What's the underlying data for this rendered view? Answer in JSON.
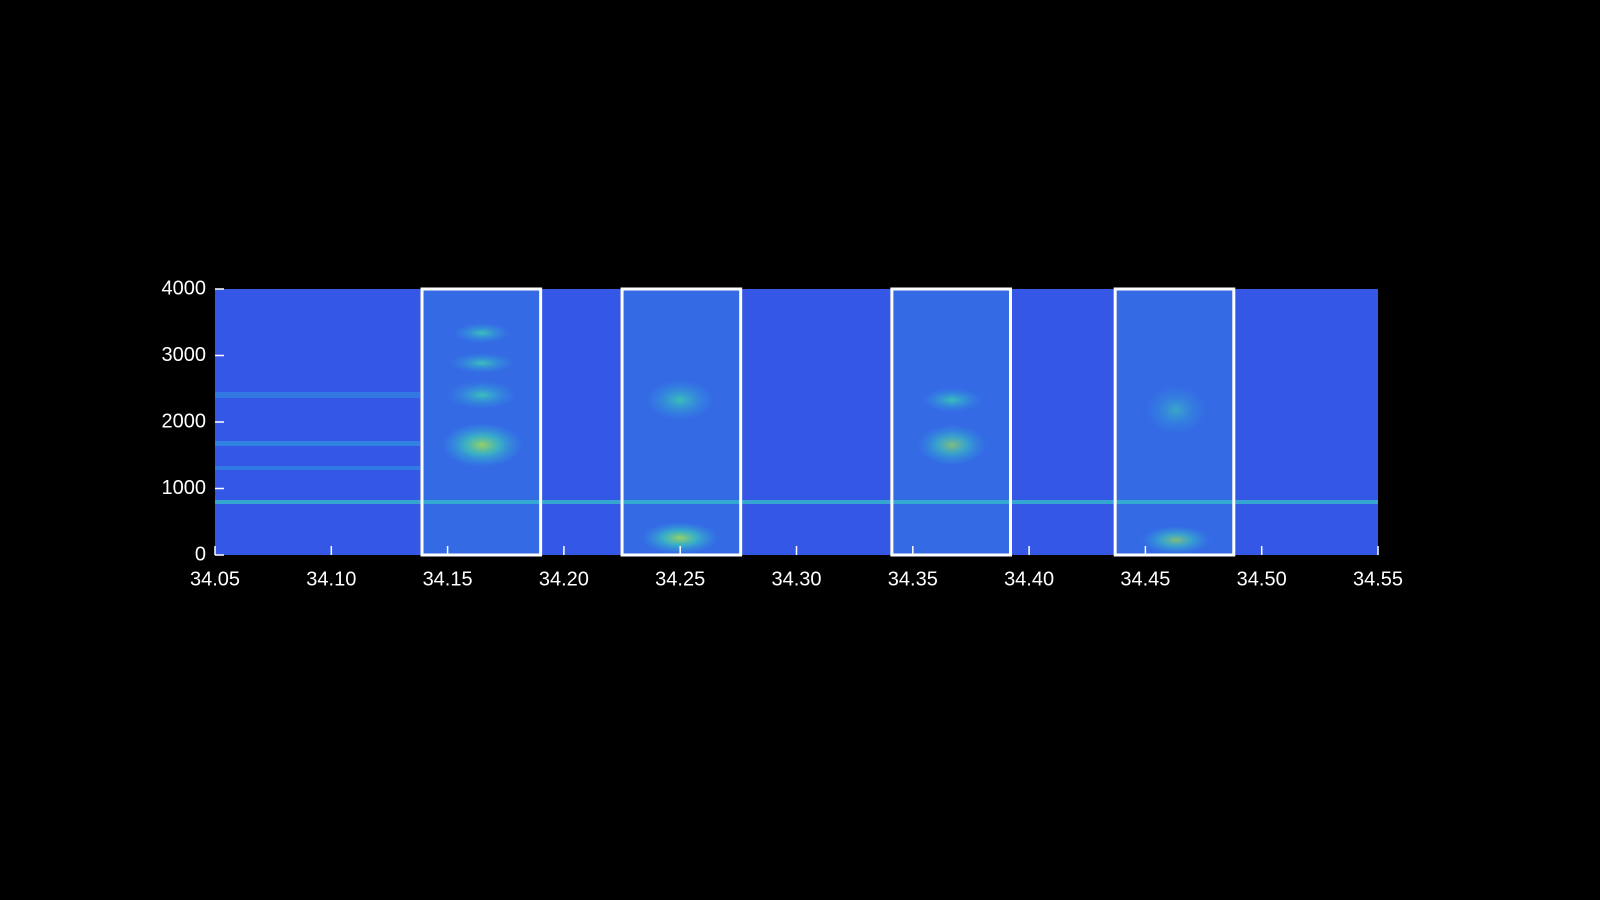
{
  "chart_data": {
    "type": "spectrogram",
    "xlim": [
      34.05,
      34.55
    ],
    "xticks": [
      34.05,
      {
        "value": 34.1,
        "label": "34.10"
      },
      34.15,
      {
        "value": 34.2,
        "label": "34.20"
      },
      34.25,
      {
        "value": 34.3,
        "label": "34.30"
      },
      34.35,
      {
        "value": 34.4,
        "label": "34.40"
      },
      34.45,
      {
        "value": 34.5,
        "label": "34.50"
      },
      34.55
    ],
    "ylim": [
      0,
      4000
    ],
    "yticks": [
      0,
      1000,
      2000,
      3000,
      4000
    ],
    "highlights": [
      [
        34.139,
        34.19
      ],
      [
        34.225,
        34.276
      ],
      [
        34.341,
        34.392
      ],
      [
        34.437,
        34.488
      ]
    ],
    "highlight_color": "#ffffff",
    "tick_color": "#ffffff"
  }
}
